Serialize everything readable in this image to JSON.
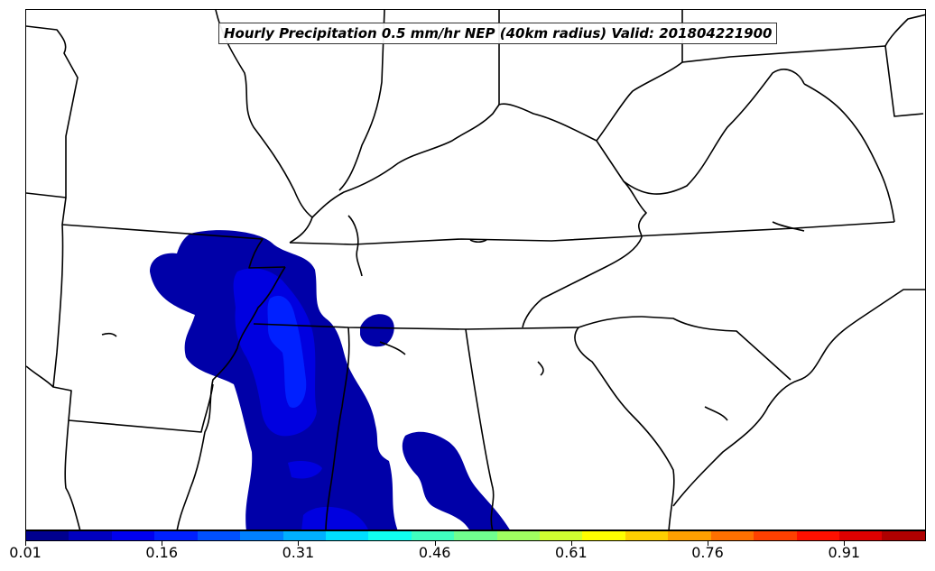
{
  "title": "Hourly Precipitation 0.5 mm/hr NEP (40km radius) Valid: 201804221900",
  "colorbar": {
    "colors": [
      "#00008f",
      "#0000bf",
      "#0000ef",
      "#0020ff",
      "#0050ff",
      "#0080ff",
      "#00afff",
      "#00dfff",
      "#10ffef",
      "#40ffbf",
      "#70ff8f",
      "#9fff60",
      "#cfff30",
      "#ffff00",
      "#ffcf00",
      "#ff9f00",
      "#ff7000",
      "#ff4000",
      "#ff1000",
      "#df0000",
      "#af0000"
    ],
    "tick_labels": [
      "0.01",
      "0.16",
      "0.31",
      "0.46",
      "0.61",
      "0.76",
      "0.91"
    ],
    "range": [
      0.01,
      1.0
    ]
  },
  "map": {
    "region": "Southeastern United States",
    "line_color": "#000000",
    "fill_levels": {
      "dark_blue": "#0000a8",
      "mid_blue": "#0000e0",
      "light_blue": "#0020ff"
    }
  }
}
